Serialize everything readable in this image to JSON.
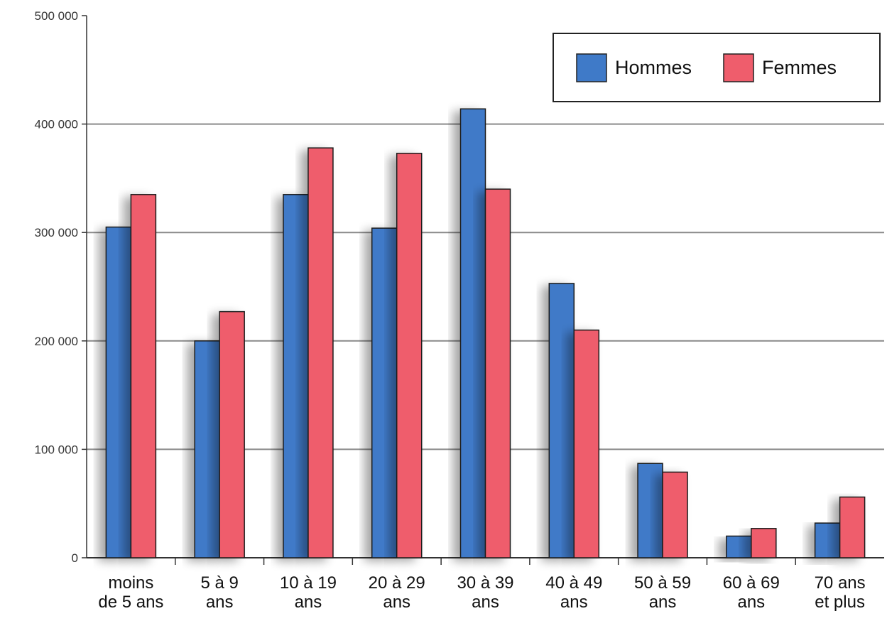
{
  "chart_data": {
    "type": "bar",
    "categories": [
      [
        "moins",
        "de 5 ans"
      ],
      [
        "5 à 9",
        "ans"
      ],
      [
        "10 à 19",
        "ans"
      ],
      [
        "20 à 29",
        "ans"
      ],
      [
        "30 à 39",
        "ans"
      ],
      [
        "40 à 49",
        "ans"
      ],
      [
        "50 à 59",
        "ans"
      ],
      [
        "60 à 69",
        "ans"
      ],
      [
        "70 ans",
        "et plus"
      ]
    ],
    "series": [
      {
        "name": "Hommes",
        "color": "#3f7ac8",
        "values": [
          305000,
          200000,
          335000,
          304000,
          414000,
          253000,
          87000,
          20000,
          32000
        ]
      },
      {
        "name": "Femmes",
        "color": "#ef5d6c",
        "values": [
          335000,
          227000,
          378000,
          373000,
          340000,
          210000,
          79000,
          27000,
          56000
        ]
      }
    ],
    "yticks": [
      0,
      100000,
      200000,
      300000,
      400000,
      500000
    ],
    "ytick_labels": [
      "0",
      "100 000",
      "200 000",
      "300 000",
      "400 000",
      "500 000"
    ],
    "ylim": [
      0,
      500000
    ],
    "grid": true,
    "legend": "top-right"
  }
}
